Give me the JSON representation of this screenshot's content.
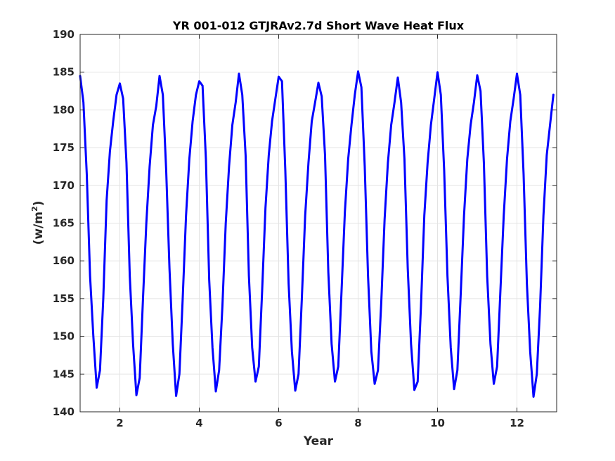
{
  "chart_data": {
    "type": "line",
    "title": "YR 001-012 GTJRAv2.7d Short Wave Heat Flux",
    "xlabel": "Year",
    "ylabel_text": "(w/m",
    "ylabel_sup": "2",
    "ylabel_close": ")",
    "xlim": [
      1,
      13
    ],
    "ylim": [
      140,
      190
    ],
    "xticks": [
      2,
      4,
      6,
      8,
      10,
      12
    ],
    "xtick_labels": [
      "2",
      "4",
      "6",
      "8",
      "10",
      "12"
    ],
    "yticks": [
      140,
      145,
      150,
      155,
      160,
      165,
      170,
      175,
      180,
      185,
      190
    ],
    "ytick_labels": [
      "140",
      "145",
      "150",
      "155",
      "160",
      "165",
      "170",
      "175",
      "180",
      "185",
      "190"
    ],
    "grid": true,
    "line_color": "#0000ff",
    "series": [
      {
        "x": [
          1.0,
          1.083,
          1.167,
          1.25,
          1.333,
          1.417,
          1.5,
          1.583,
          1.667,
          1.75,
          1.833,
          1.917,
          2.0,
          2.083,
          2.167,
          2.25,
          2.333,
          2.417,
          2.5,
          2.583,
          2.667,
          2.75,
          2.833,
          2.917,
          3.0,
          3.083,
          3.167,
          3.25,
          3.333,
          3.417,
          3.5,
          3.583,
          3.667,
          3.75,
          3.833,
          3.917,
          4.0,
          4.083,
          4.167,
          4.25,
          4.333,
          4.417,
          4.5,
          4.583,
          4.667,
          4.75,
          4.833,
          4.917,
          5.0,
          5.083,
          5.167,
          5.25,
          5.333,
          5.417,
          5.5,
          5.583,
          5.667,
          5.75,
          5.833,
          5.917,
          6.0,
          6.083,
          6.167,
          6.25,
          6.333,
          6.417,
          6.5,
          6.583,
          6.667,
          6.75,
          6.833,
          6.917,
          7.0,
          7.083,
          7.167,
          7.25,
          7.333,
          7.417,
          7.5,
          7.583,
          7.667,
          7.75,
          7.833,
          7.917,
          8.0,
          8.083,
          8.167,
          8.25,
          8.333,
          8.417,
          8.5,
          8.583,
          8.667,
          8.75,
          8.833,
          8.917,
          9.0,
          9.083,
          9.167,
          9.25,
          9.333,
          9.417,
          9.5,
          9.583,
          9.667,
          9.75,
          9.833,
          9.917,
          10.0,
          10.083,
          10.167,
          10.25,
          10.333,
          10.417,
          10.5,
          10.583,
          10.667,
          10.75,
          10.833,
          10.917,
          11.0,
          11.083,
          11.167,
          11.25,
          11.333,
          11.417,
          11.5,
          11.583,
          11.667,
          11.75,
          11.833,
          11.917,
          12.0,
          12.083,
          12.167,
          12.25,
          12.333,
          12.417,
          12.5,
          12.583,
          12.667,
          12.75,
          12.833,
          12.917
        ],
        "y": [
          184.5,
          181.0,
          171.5,
          158.0,
          150.0,
          143.2,
          145.5,
          155.0,
          168.0,
          174.5,
          178.5,
          182.0,
          183.5,
          181.5,
          173.0,
          158.0,
          149.0,
          142.2,
          144.5,
          155.0,
          165.0,
          172.5,
          178.0,
          180.5,
          184.5,
          182.0,
          172.0,
          159.0,
          149.0,
          142.1,
          145.0,
          155.0,
          166.0,
          173.5,
          178.5,
          182.0,
          183.8,
          183.2,
          173.5,
          157.5,
          148.5,
          142.7,
          145.5,
          154.0,
          165.0,
          172.5,
          178.0,
          181.0,
          184.8,
          182.0,
          174.0,
          158.0,
          148.5,
          144.0,
          146.0,
          156.0,
          167.0,
          174.0,
          178.5,
          181.5,
          184.4,
          183.8,
          172.0,
          157.0,
          148.0,
          142.8,
          145.0,
          155.0,
          166.0,
          173.0,
          178.5,
          181.0,
          183.6,
          181.8,
          174.0,
          158.5,
          149.0,
          144.0,
          146.0,
          156.0,
          166.5,
          173.5,
          178.0,
          182.0,
          185.1,
          183.0,
          172.5,
          158.0,
          148.0,
          143.7,
          145.5,
          154.5,
          165.5,
          173.0,
          178.0,
          181.0,
          184.3,
          181.0,
          173.5,
          159.0,
          149.0,
          142.9,
          144.0,
          154.0,
          166.0,
          173.0,
          178.0,
          181.5,
          185.0,
          182.0,
          172.0,
          158.0,
          148.5,
          143.0,
          145.5,
          155.5,
          166.0,
          173.5,
          178.0,
          181.0,
          184.6,
          182.5,
          173.0,
          158.0,
          149.0,
          143.7,
          146.0,
          156.0,
          166.0,
          173.5,
          178.5,
          181.5,
          184.8,
          182.0,
          171.5,
          157.0,
          148.0,
          142.0,
          145.0,
          154.0,
          166.0,
          174.0,
          178.0,
          182.0
        ]
      }
    ]
  }
}
